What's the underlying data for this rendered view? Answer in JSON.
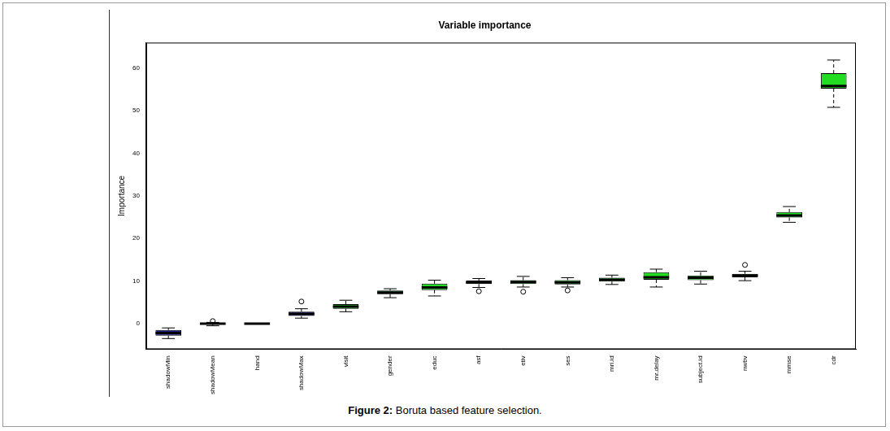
{
  "chart_data": {
    "type": "boxplot",
    "title": "Variable importance",
    "y_label": "Importance",
    "caption_label": "Figure 2:",
    "caption": "Boruta based feature selection.",
    "categories": [
      "shadowMin",
      "shadowMean",
      "hand",
      "shadowMax",
      "visit",
      "gender",
      "educ",
      "asf",
      "etiv",
      "ses",
      "mri.id",
      "mr.delay",
      "subject.id",
      "nwbv",
      "mmse",
      "cdr"
    ],
    "boxes": [
      {
        "min": -3.5,
        "q1": -2.8,
        "median": -2.2,
        "q3": -1.5,
        "max": -1.0,
        "outliers": []
      },
      {
        "min": -0.5,
        "q1": -0.2,
        "median": 0.0,
        "q3": 0.1,
        "max": 0.3,
        "outliers": [
          0.6
        ]
      },
      {
        "min": 0.0,
        "q1": 0.0,
        "median": 0.0,
        "q3": 0.0,
        "max": 0.0,
        "outliers": []
      },
      {
        "min": 1.3,
        "q1": 1.8,
        "median": 2.3,
        "q3": 2.8,
        "max": 3.5,
        "outliers": [
          5.2
        ]
      },
      {
        "min": 2.8,
        "q1": 3.5,
        "median": 4.0,
        "q3": 4.6,
        "max": 5.5,
        "outliers": []
      },
      {
        "min": 6.1,
        "q1": 6.9,
        "median": 7.3,
        "q3": 7.8,
        "max": 8.2,
        "outliers": []
      },
      {
        "min": 6.5,
        "q1": 7.9,
        "median": 8.5,
        "q3": 9.4,
        "max": 10.2,
        "outliers": []
      },
      {
        "min": 8.5,
        "q1": 9.3,
        "median": 9.7,
        "q3": 10.1,
        "max": 10.6,
        "outliers": [
          7.6
        ]
      },
      {
        "min": 8.6,
        "q1": 9.3,
        "median": 9.8,
        "q3": 10.2,
        "max": 11.1,
        "outliers": [
          7.5
        ]
      },
      {
        "min": 8.6,
        "q1": 9.2,
        "median": 9.7,
        "q3": 10.2,
        "max": 10.8,
        "outliers": [
          7.8
        ]
      },
      {
        "min": 9.2,
        "q1": 9.9,
        "median": 10.3,
        "q3": 10.8,
        "max": 11.4,
        "outliers": []
      },
      {
        "min": 8.6,
        "q1": 10.3,
        "median": 10.9,
        "q3": 12.1,
        "max": 12.8,
        "outliers": []
      },
      {
        "min": 9.3,
        "q1": 10.2,
        "median": 10.8,
        "q3": 11.3,
        "max": 12.3,
        "outliers": []
      },
      {
        "min": 10.1,
        "q1": 10.9,
        "median": 11.3,
        "q3": 11.7,
        "max": 12.3,
        "outliers": [
          13.8
        ]
      },
      {
        "min": 23.8,
        "q1": 24.9,
        "median": 25.4,
        "q3": 26.2,
        "max": 27.5,
        "outliers": []
      },
      {
        "min": 50.8,
        "q1": 55.2,
        "median": 55.8,
        "q3": 58.8,
        "max": 61.9,
        "outliers": []
      }
    ],
    "colors": [
      "#1c1c8e",
      "#1c1c8e",
      "#ff0000",
      "#1c1c8e",
      "#22dd22",
      "#22dd22",
      "#22dd22",
      "#22dd22",
      "#22dd22",
      "#22dd22",
      "#22dd22",
      "#22dd22",
      "#22dd22",
      "#22dd22",
      "#22dd22",
      "#22dd22"
    ],
    "ylim": [
      -6,
      66
    ],
    "yticks": [
      0,
      10,
      20,
      30,
      40,
      50,
      60
    ],
    "grid": false
  }
}
